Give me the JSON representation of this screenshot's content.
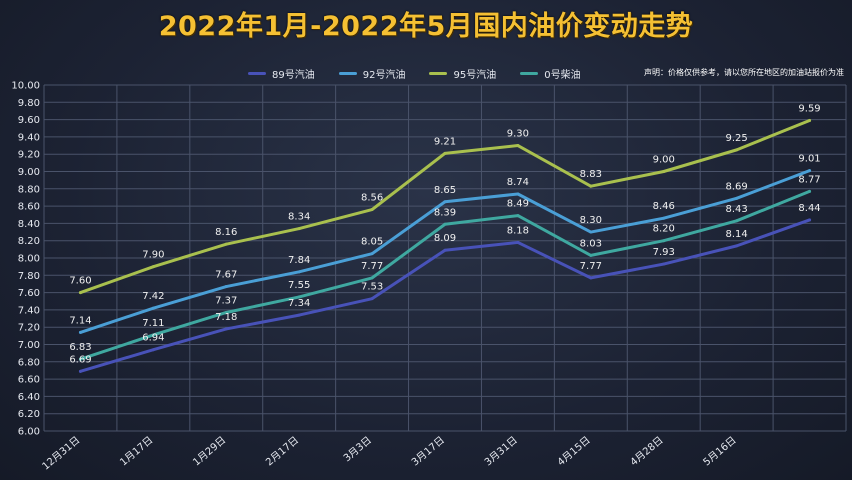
{
  "title": "2022年1月-2022年5月国内油价变动走势",
  "disclaimer": "声明：价格仅供参考，请以您所在地区的加油站报价为准",
  "colors": {
    "89": "#4852b8",
    "92": "#4a9fd6",
    "95": "#a9c04e",
    "diesel": "#3fa8a0",
    "grid": "#4a536a",
    "label": "#f0f0f0"
  },
  "chart_data": {
    "type": "line",
    "categories": [
      "12月31日",
      "1月17日",
      "1月29日",
      "2月17日",
      "3月3日",
      "3月17日",
      "3月31日",
      "4月15日",
      "4月28日",
      "5月16日",
      ""
    ],
    "ylim": [
      6.0,
      10.0
    ],
    "yticks": [
      "6.00",
      "6.20",
      "6.40",
      "6.60",
      "6.80",
      "7.00",
      "7.20",
      "7.40",
      "7.60",
      "7.80",
      "8.00",
      "8.20",
      "8.40",
      "8.60",
      "8.80",
      "9.00",
      "9.20",
      "9.40",
      "9.60",
      "9.80",
      "10.00"
    ],
    "grid": true,
    "legend_position": "top",
    "series": [
      {
        "key": "89",
        "name": "89号汽油",
        "values": [
          6.69,
          6.94,
          7.18,
          7.34,
          7.53,
          8.09,
          8.18,
          7.77,
          7.93,
          8.14,
          8.44
        ],
        "labels": [
          "6.69",
          "6.94",
          "7.18",
          "7.34",
          "7.53",
          "8.09",
          "8.18",
          "7.77",
          "7.93",
          "8.14",
          "8.44"
        ]
      },
      {
        "key": "92",
        "name": "92号汽油",
        "values": [
          7.14,
          7.42,
          7.67,
          7.84,
          8.05,
          8.65,
          8.74,
          8.3,
          8.46,
          8.69,
          9.01
        ],
        "labels": [
          "7.14",
          "7.42",
          "7.67",
          "7.84",
          "8.05",
          "8.65",
          "8.74",
          "8.30",
          "8.46",
          "8.69",
          "9.01"
        ]
      },
      {
        "key": "95",
        "name": "95号汽油",
        "values": [
          7.6,
          7.9,
          8.16,
          8.34,
          8.56,
          9.21,
          9.3,
          8.83,
          9.0,
          9.25,
          9.59
        ],
        "labels": [
          "7.60",
          "7.90",
          "8.16",
          "8.34",
          "8.56",
          "9.21",
          "9.30",
          "8.83",
          "9.00",
          "9.25",
          "9.59"
        ]
      },
      {
        "key": "diesel",
        "name": "0号柴油",
        "values": [
          6.83,
          7.11,
          7.37,
          7.55,
          7.77,
          8.39,
          8.49,
          8.03,
          8.2,
          8.43,
          8.77
        ],
        "labels": [
          "6.83",
          "7.11",
          "7.37",
          "7.55",
          "7.77",
          "8.39",
          "8.49",
          "8.03",
          "8.20",
          "8.43",
          "8.77"
        ]
      }
    ]
  }
}
